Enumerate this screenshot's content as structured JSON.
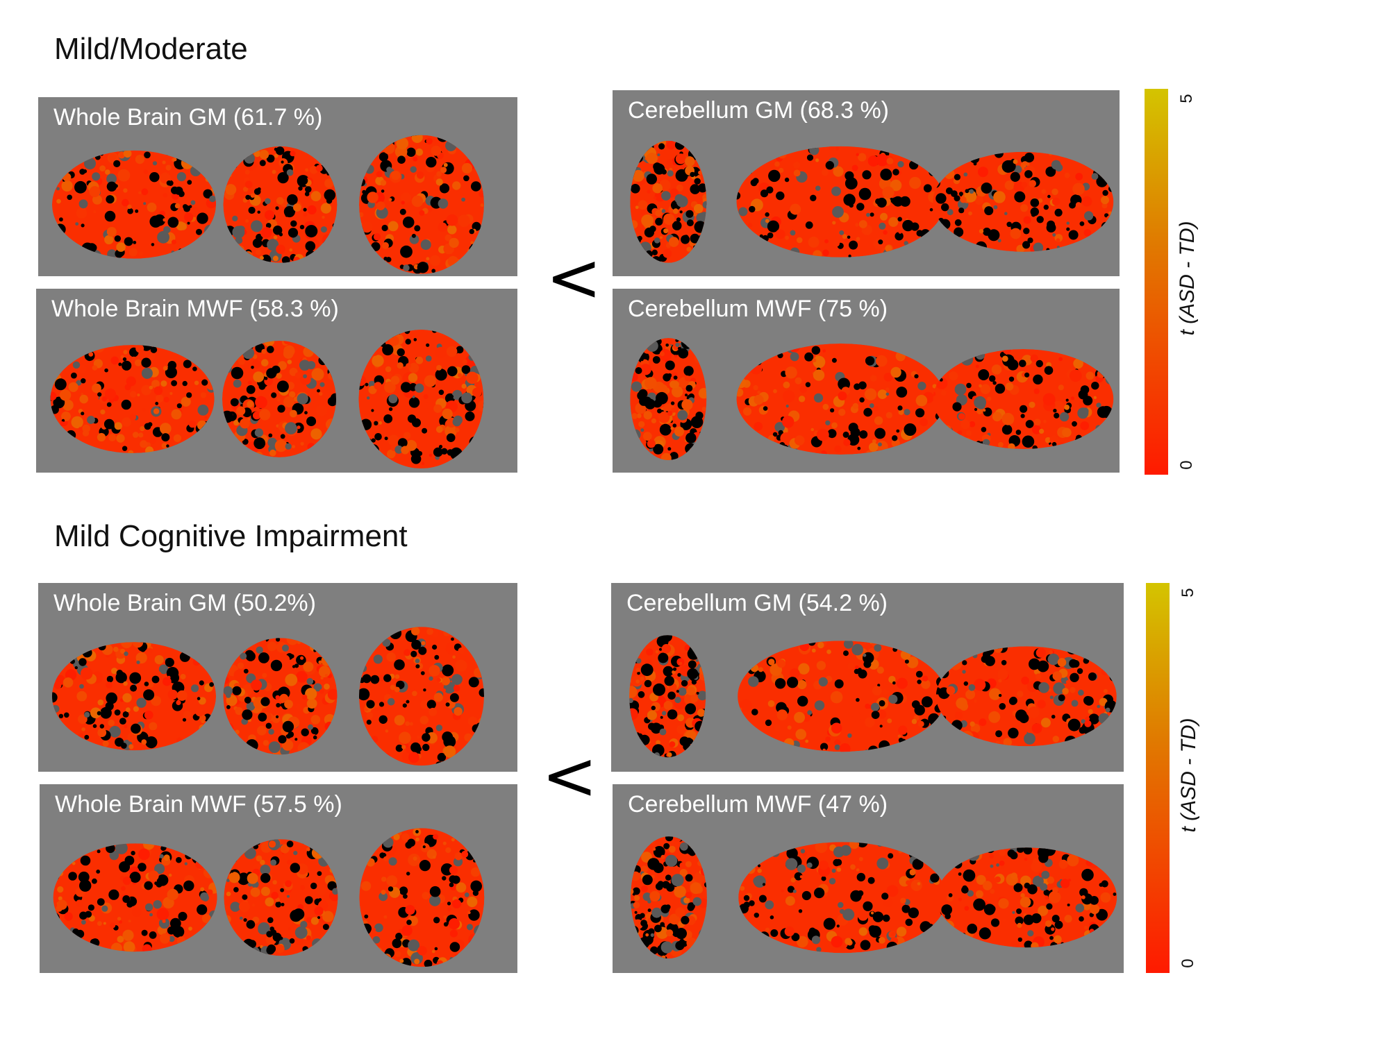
{
  "sections": [
    {
      "title": "Mild/Moderate",
      "comparison_symbol": "<",
      "panels": {
        "wb_gm": "Whole Brain GM (61.7 %)",
        "wb_mwf": "Whole Brain MWF (58.3 %)",
        "cb_gm": "Cerebellum GM (68.3 %)",
        "cb_mwf": "Cerebellum MWF (75 %)"
      },
      "colorbar": {
        "min": "0",
        "max": "5",
        "label": "t (ASD - TD)"
      }
    },
    {
      "title": "Mild Cognitive Impairment",
      "comparison_symbol": "<",
      "panels": {
        "wb_gm": "Whole Brain GM (50.2%)",
        "wb_mwf": "Whole Brain MWF (57.5 %)",
        "cb_gm": "Cerebellum GM (54.2 %)",
        "cb_mwf": "Cerebellum MWF (47 %)"
      },
      "colorbar": {
        "min": "0",
        "max": "5",
        "label": "t (ASD - TD)"
      }
    }
  ],
  "colors": {
    "panel_background": "#7f7f7f",
    "low_t": "#ff1a00",
    "high_t": "#d4c400",
    "mask": "#000000"
  }
}
